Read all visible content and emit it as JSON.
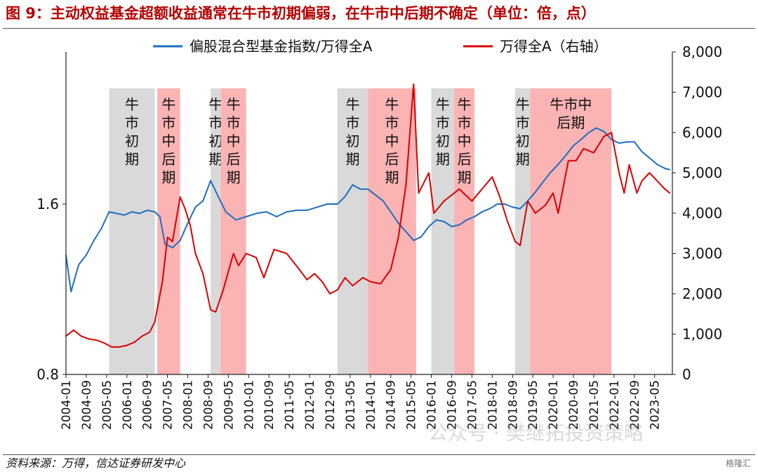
{
  "page": {
    "title": "图 9：主动权益基金超额收益通常在牛市初期偏弱，在牛市中后期不确定（单位：倍，点）",
    "source": "资料来源：万得，信达证券研发中心",
    "watermark": "公众号 · 樊继拓投资策略",
    "brand": "格隆汇"
  },
  "colors": {
    "blue": "#1f6ebe",
    "red": "#d80000",
    "gray_band": "#d9d9d9",
    "pink_band": "#fbb3b3"
  },
  "chart_data": {
    "type": "line",
    "legend": [
      {
        "name": "偏股混合型基金指数/万得全A",
        "color": "#1f6ebe"
      },
      {
        "name": "万得全A（右轴）",
        "color": "#d80000"
      }
    ],
    "legend_placement": "top",
    "x_ticks": [
      "2004-01",
      "2004-09",
      "2005-05",
      "2006-01",
      "2006-09",
      "2007-05",
      "2008-01",
      "2008-09",
      "2009-05",
      "2010-01",
      "2010-09",
      "2011-05",
      "2012-01",
      "2012-09",
      "2013-05",
      "2014-01",
      "2014-09",
      "2015-05",
      "2016-01",
      "2016-09",
      "2017-05",
      "2018-01",
      "2018-09",
      "2019-05",
      "2020-01",
      "2020-09",
      "2021-05",
      "2022-01",
      "2022-09",
      "2023-05"
    ],
    "y_left": {
      "ticks": [
        "0.8",
        "1.6"
      ],
      "values": [
        0.8,
        1.6
      ],
      "scale": "log"
    },
    "y_right": {
      "ticks": [
        "0",
        "1,000",
        "2,000",
        "3,000",
        "4,000",
        "5,000",
        "6,000",
        "7,000",
        "8,000"
      ],
      "values": [
        0,
        1000,
        2000,
        3000,
        4000,
        5000,
        6000,
        7000,
        8000
      ]
    },
    "regions": [
      {
        "type": "牛市初期",
        "start": "2005-06",
        "end": "2006-12",
        "label": "牛市初期"
      },
      {
        "type": "牛市中后期",
        "start": "2007-01",
        "end": "2007-10",
        "label": "牛市中后期"
      },
      {
        "type": "牛市初期",
        "start": "2008-10",
        "end": "2009-02",
        "label": "牛市初期"
      },
      {
        "type": "牛市中后期",
        "start": "2009-02",
        "end": "2009-12",
        "label": "牛市中后期"
      },
      {
        "type": "牛市初期",
        "start": "2012-12",
        "end": "2013-12",
        "label": "牛市初期"
      },
      {
        "type": "牛市中后期",
        "start": "2013-12",
        "end": "2015-07",
        "label": "牛市中后期"
      },
      {
        "type": "牛市初期",
        "start": "2016-01",
        "end": "2016-10",
        "label": "牛市初期"
      },
      {
        "type": "牛市中后期",
        "start": "2016-10",
        "end": "2017-06",
        "label": "牛市中后期"
      },
      {
        "type": "牛市初期",
        "start": "2018-10",
        "end": "2019-04",
        "label": "牛市初期"
      },
      {
        "type": "牛市中后期",
        "start": "2019-04",
        "end": "2021-12",
        "label": "牛市中后期"
      }
    ],
    "series": [
      {
        "name": "偏股混合型基金指数/万得全A",
        "axis": "left",
        "color": "#1f6ebe",
        "points": [
          [
            "2004-01",
            1.3
          ],
          [
            "2004-03",
            1.12
          ],
          [
            "2004-06",
            1.25
          ],
          [
            "2004-09",
            1.3
          ],
          [
            "2004-12",
            1.38
          ],
          [
            "2005-03",
            1.45
          ],
          [
            "2005-06",
            1.55
          ],
          [
            "2005-09",
            1.54
          ],
          [
            "2005-12",
            1.53
          ],
          [
            "2006-03",
            1.55
          ],
          [
            "2006-06",
            1.54
          ],
          [
            "2006-09",
            1.56
          ],
          [
            "2006-12",
            1.55
          ],
          [
            "2007-02",
            1.52
          ],
          [
            "2007-04",
            1.36
          ],
          [
            "2007-07",
            1.34
          ],
          [
            "2007-10",
            1.38
          ],
          [
            "2008-01",
            1.48
          ],
          [
            "2008-04",
            1.58
          ],
          [
            "2008-07",
            1.62
          ],
          [
            "2008-10",
            1.76
          ],
          [
            "2009-01",
            1.65
          ],
          [
            "2009-04",
            1.55
          ],
          [
            "2009-08",
            1.5
          ],
          [
            "2009-12",
            1.52
          ],
          [
            "2010-04",
            1.54
          ],
          [
            "2010-08",
            1.55
          ],
          [
            "2010-12",
            1.52
          ],
          [
            "2011-04",
            1.55
          ],
          [
            "2011-08",
            1.56
          ],
          [
            "2011-12",
            1.56
          ],
          [
            "2012-04",
            1.58
          ],
          [
            "2012-08",
            1.6
          ],
          [
            "2012-12",
            1.6
          ],
          [
            "2013-03",
            1.65
          ],
          [
            "2013-06",
            1.73
          ],
          [
            "2013-09",
            1.7
          ],
          [
            "2013-12",
            1.7
          ],
          [
            "2014-03",
            1.66
          ],
          [
            "2014-06",
            1.62
          ],
          [
            "2014-09",
            1.55
          ],
          [
            "2014-12",
            1.48
          ],
          [
            "2015-03",
            1.43
          ],
          [
            "2015-06",
            1.38
          ],
          [
            "2015-09",
            1.4
          ],
          [
            "2015-12",
            1.46
          ],
          [
            "2016-03",
            1.5
          ],
          [
            "2016-06",
            1.49
          ],
          [
            "2016-09",
            1.46
          ],
          [
            "2016-12",
            1.47
          ],
          [
            "2017-03",
            1.5
          ],
          [
            "2017-06",
            1.52
          ],
          [
            "2017-09",
            1.55
          ],
          [
            "2017-12",
            1.57
          ],
          [
            "2018-03",
            1.6
          ],
          [
            "2018-06",
            1.6
          ],
          [
            "2018-09",
            1.58
          ],
          [
            "2018-12",
            1.57
          ],
          [
            "2019-03",
            1.62
          ],
          [
            "2019-06",
            1.68
          ],
          [
            "2019-09",
            1.75
          ],
          [
            "2019-12",
            1.82
          ],
          [
            "2020-03",
            1.88
          ],
          [
            "2020-06",
            1.95
          ],
          [
            "2020-09",
            2.03
          ],
          [
            "2020-12",
            2.08
          ],
          [
            "2021-03",
            2.14
          ],
          [
            "2021-06",
            2.18
          ],
          [
            "2021-09",
            2.15
          ],
          [
            "2021-12",
            2.08
          ],
          [
            "2022-03",
            2.05
          ],
          [
            "2022-06",
            2.06
          ],
          [
            "2022-09",
            2.06
          ],
          [
            "2022-12",
            1.98
          ],
          [
            "2023-03",
            1.93
          ],
          [
            "2023-06",
            1.88
          ],
          [
            "2023-09",
            1.85
          ],
          [
            "2023-11",
            1.84
          ]
        ]
      },
      {
        "name": "万得全A（右轴）",
        "axis": "right",
        "color": "#d80000",
        "points": [
          [
            "2004-01",
            950
          ],
          [
            "2004-04",
            1100
          ],
          [
            "2004-07",
            950
          ],
          [
            "2004-10",
            880
          ],
          [
            "2005-01",
            850
          ],
          [
            "2005-04",
            780
          ],
          [
            "2005-07",
            680
          ],
          [
            "2005-10",
            680
          ],
          [
            "2006-01",
            720
          ],
          [
            "2006-04",
            800
          ],
          [
            "2006-07",
            950
          ],
          [
            "2006-10",
            1050
          ],
          [
            "2006-12",
            1300
          ],
          [
            "2007-03",
            2300
          ],
          [
            "2007-05",
            3400
          ],
          [
            "2007-07",
            3300
          ],
          [
            "2007-10",
            4400
          ],
          [
            "2007-12",
            4100
          ],
          [
            "2008-02",
            3700
          ],
          [
            "2008-04",
            3000
          ],
          [
            "2008-07",
            2500
          ],
          [
            "2008-10",
            1600
          ],
          [
            "2008-12",
            1550
          ],
          [
            "2009-03",
            2100
          ],
          [
            "2009-07",
            3000
          ],
          [
            "2009-09",
            2700
          ],
          [
            "2009-12",
            3000
          ],
          [
            "2010-04",
            2900
          ],
          [
            "2010-07",
            2400
          ],
          [
            "2010-11",
            3100
          ],
          [
            "2011-04",
            3000
          ],
          [
            "2011-09",
            2600
          ],
          [
            "2011-12",
            2350
          ],
          [
            "2012-03",
            2500
          ],
          [
            "2012-06",
            2300
          ],
          [
            "2012-09",
            2000
          ],
          [
            "2012-12",
            2100
          ],
          [
            "2013-03",
            2400
          ],
          [
            "2013-06",
            2200
          ],
          [
            "2013-10",
            2400
          ],
          [
            "2014-01",
            2300
          ],
          [
            "2014-05",
            2250
          ],
          [
            "2014-09",
            2600
          ],
          [
            "2014-12",
            3400
          ],
          [
            "2015-03",
            4700
          ],
          [
            "2015-06",
            7200
          ],
          [
            "2015-08",
            4500
          ],
          [
            "2015-12",
            5000
          ],
          [
            "2016-02",
            4000
          ],
          [
            "2016-06",
            4300
          ],
          [
            "2016-10",
            4500
          ],
          [
            "2016-12",
            4600
          ],
          [
            "2017-05",
            4300
          ],
          [
            "2017-09",
            4600
          ],
          [
            "2018-01",
            4900
          ],
          [
            "2018-04",
            4400
          ],
          [
            "2018-07",
            3800
          ],
          [
            "2018-10",
            3300
          ],
          [
            "2018-12",
            3200
          ],
          [
            "2019-03",
            4300
          ],
          [
            "2019-06",
            4000
          ],
          [
            "2019-10",
            4200
          ],
          [
            "2020-01",
            4500
          ],
          [
            "2020-03",
            4000
          ],
          [
            "2020-07",
            5300
          ],
          [
            "2020-10",
            5300
          ],
          [
            "2021-01",
            5600
          ],
          [
            "2021-05",
            5500
          ],
          [
            "2021-09",
            5900
          ],
          [
            "2021-12",
            6000
          ],
          [
            "2022-03",
            5000
          ],
          [
            "2022-05",
            4500
          ],
          [
            "2022-07",
            5200
          ],
          [
            "2022-10",
            4500
          ],
          [
            "2022-12",
            4800
          ],
          [
            "2023-03",
            5000
          ],
          [
            "2023-06",
            4800
          ],
          [
            "2023-09",
            4600
          ],
          [
            "2023-11",
            4500
          ]
        ]
      }
    ]
  }
}
